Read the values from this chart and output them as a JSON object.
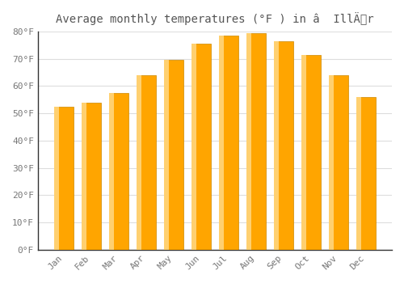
{
  "title": "Average monthly temperatures (°F ) in â  IllÄr",
  "months": [
    "Jan",
    "Feb",
    "Mar",
    "Apr",
    "May",
    "Jun",
    "Jul",
    "Aug",
    "Sep",
    "Oct",
    "Nov",
    "Dec"
  ],
  "values": [
    52.5,
    54.0,
    57.5,
    64.0,
    69.5,
    75.5,
    78.5,
    79.5,
    76.5,
    71.5,
    64.0,
    56.0
  ],
  "bar_color_main": "#FFA500",
  "bar_color_light": "#FFD070",
  "bar_color_edge": "#CC8800",
  "ylim": [
    0,
    80
  ],
  "yticks": [
    0,
    10,
    20,
    30,
    40,
    50,
    60,
    70,
    80
  ],
  "background_color": "#FFFFFF",
  "grid_color": "#DDDDDD",
  "title_fontsize": 10,
  "tick_fontsize": 8,
  "tick_color": "#777777",
  "title_color": "#555555"
}
